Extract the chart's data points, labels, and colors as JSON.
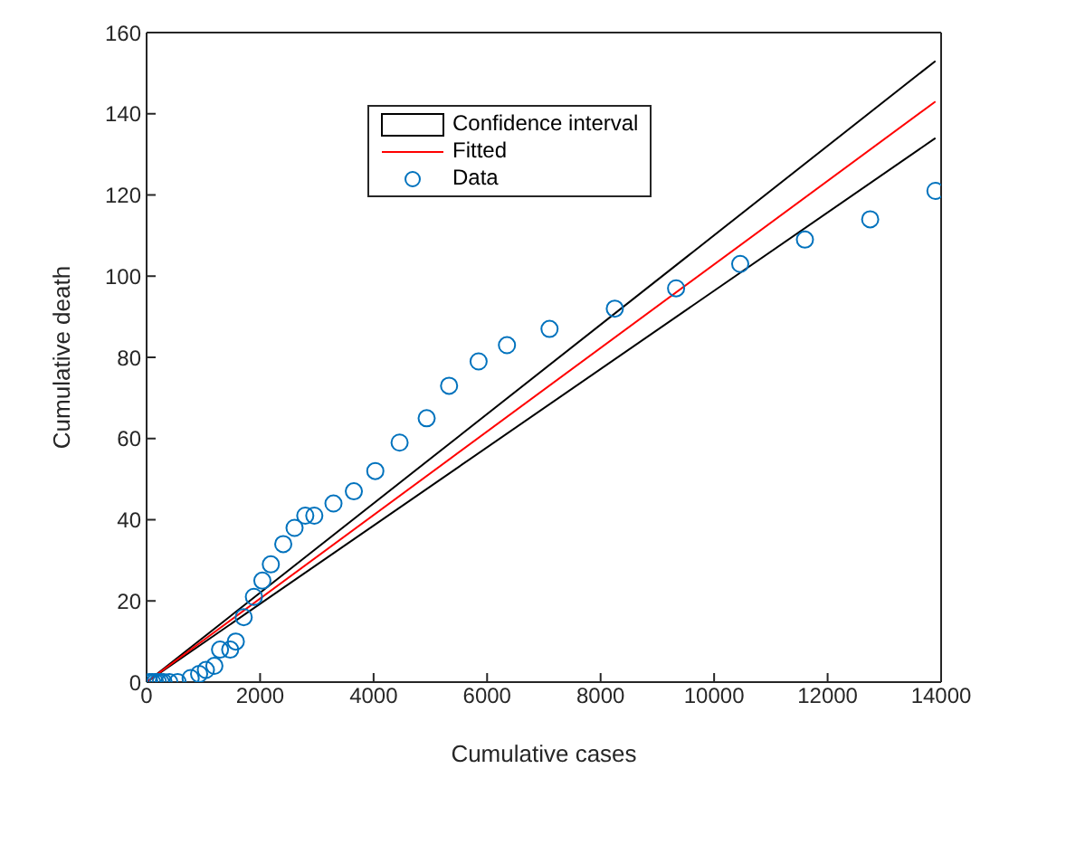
{
  "chart_data": {
    "type": "scatter",
    "xlabel": "Cumulative cases",
    "ylabel": "Cumulative death",
    "xlim": [
      0,
      14000
    ],
    "ylim": [
      0,
      160
    ],
    "xticks": [
      0,
      2000,
      4000,
      6000,
      8000,
      10000,
      12000,
      14000
    ],
    "yticks": [
      0,
      20,
      40,
      60,
      80,
      100,
      120,
      140,
      160
    ],
    "legend": "top",
    "series": [
      {
        "name": "Confidence interval",
        "type": "line",
        "color": "#000000",
        "x": [
          0,
          13900
        ],
        "values": [
          0,
          153
        ]
      },
      {
        "type": "line",
        "color": "#000000",
        "x": [
          0,
          13900
        ],
        "values": [
          0,
          134
        ]
      },
      {
        "name": "Fitted",
        "type": "line",
        "color": "#ff0000",
        "x": [
          0,
          13900
        ],
        "values": [
          0,
          143
        ]
      },
      {
        "name": "Data",
        "type": "scatter",
        "marker": "circle",
        "color": "#0072bd",
        "x": [
          50,
          100,
          150,
          200,
          250,
          300,
          400,
          547,
          776,
          925,
          1045,
          1194,
          1294,
          1473,
          1572,
          1711,
          1891,
          2040,
          2189,
          2408,
          2607,
          2796,
          2955,
          3293,
          3652,
          4030,
          4458,
          4935,
          5330,
          5850,
          6350,
          7100,
          8250,
          9330,
          10460,
          11600,
          12750,
          13900
        ],
        "values": [
          0,
          0,
          0,
          0,
          0,
          0,
          0,
          0,
          1,
          2,
          3,
          4,
          8,
          8,
          10,
          16,
          21,
          25,
          29,
          34,
          38,
          41,
          41,
          44,
          47,
          52,
          59,
          65,
          73,
          79,
          83,
          87,
          92,
          97,
          103,
          109,
          114,
          121
        ]
      }
    ]
  }
}
